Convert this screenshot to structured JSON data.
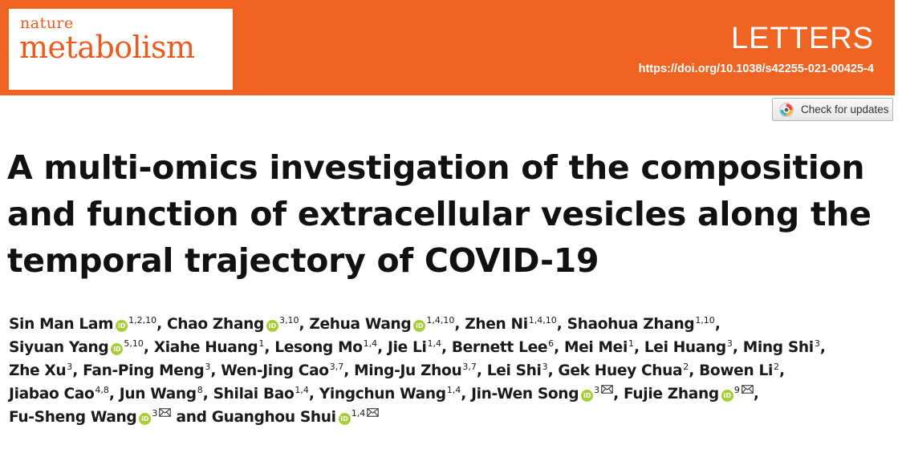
{
  "journal": {
    "name_top": "nature",
    "name_main": "metabolism",
    "article_type": "LETTERS",
    "doi": "https://doi.org/10.1038/s42255-021-00425-4",
    "brand_color": "#f06423"
  },
  "check_updates": {
    "label": "Check for updates"
  },
  "title": "A multi-omics investigation of the composition and function of extracellular vesicles along the temporal trajectory of COVID-19",
  "orcid_label": "iD",
  "author_lines": [
    [
      {
        "name": "Sin Man Lam",
        "orcid": true,
        "sup": "1,2,10",
        "mail": false,
        "sep": ", "
      },
      {
        "name": "Chao Zhang",
        "orcid": true,
        "sup": "3,10",
        "mail": false,
        "sep": ", "
      },
      {
        "name": "Zehua Wang",
        "orcid": true,
        "sup": "1,4,10",
        "mail": false,
        "sep": ", "
      },
      {
        "name": "Zhen Ni",
        "orcid": false,
        "sup": "1,4,10",
        "mail": false,
        "sep": ", "
      },
      {
        "name": "Shaohua Zhang",
        "orcid": false,
        "sup": "1,10",
        "mail": false,
        "sep": ","
      }
    ],
    [
      {
        "name": "Siyuan Yang",
        "orcid": true,
        "sup": "5,10",
        "mail": false,
        "sep": ", "
      },
      {
        "name": "Xiahe Huang",
        "orcid": false,
        "sup": "1",
        "mail": false,
        "sep": ", "
      },
      {
        "name": "Lesong Mo",
        "orcid": false,
        "sup": "1,4",
        "mail": false,
        "sep": ", "
      },
      {
        "name": "Jie Li",
        "orcid": false,
        "sup": "1,4",
        "mail": false,
        "sep": ", "
      },
      {
        "name": "Bernett Lee",
        "orcid": false,
        "sup": "6",
        "mail": false,
        "sep": ", "
      },
      {
        "name": "Mei Mei",
        "orcid": false,
        "sup": "1",
        "mail": false,
        "sep": ", "
      },
      {
        "name": "Lei Huang",
        "orcid": false,
        "sup": "3",
        "mail": false,
        "sep": ", "
      },
      {
        "name": "Ming Shi",
        "orcid": false,
        "sup": "3",
        "mail": false,
        "sep": ","
      }
    ],
    [
      {
        "name": "Zhe Xu",
        "orcid": false,
        "sup": "3",
        "mail": false,
        "sep": ", "
      },
      {
        "name": "Fan-Ping Meng",
        "orcid": false,
        "sup": "3",
        "mail": false,
        "sep": ", "
      },
      {
        "name": "Wen-Jing Cao",
        "orcid": false,
        "sup": "3,7",
        "mail": false,
        "sep": ", "
      },
      {
        "name": "Ming-Ju Zhou",
        "orcid": false,
        "sup": "3,7",
        "mail": false,
        "sep": ", "
      },
      {
        "name": "Lei Shi",
        "orcid": false,
        "sup": "3",
        "mail": false,
        "sep": ", "
      },
      {
        "name": "Gek Huey Chua",
        "orcid": false,
        "sup": "2",
        "mail": false,
        "sep": ", "
      },
      {
        "name": "Bowen Li",
        "orcid": false,
        "sup": "2",
        "mail": false,
        "sep": ","
      }
    ],
    [
      {
        "name": "Jiabao Cao",
        "orcid": false,
        "sup": "4,8",
        "mail": false,
        "sep": ", "
      },
      {
        "name": "Jun Wang",
        "orcid": false,
        "sup": "8",
        "mail": false,
        "sep": ", "
      },
      {
        "name": "Shilai Bao",
        "orcid": false,
        "sup": "1,4",
        "mail": false,
        "sep": ", "
      },
      {
        "name": "Yingchun Wang",
        "orcid": false,
        "sup": "1,4",
        "mail": false,
        "sep": ", "
      },
      {
        "name": "Jin-Wen Song",
        "orcid": true,
        "sup": "3",
        "mail": true,
        "sep": ", "
      },
      {
        "name": "Fujie Zhang",
        "orcid": true,
        "sup": "9",
        "mail": true,
        "sep": ","
      }
    ],
    [
      {
        "name": "Fu-Sheng Wang",
        "orcid": true,
        "sup": "3",
        "mail": true,
        "sep": " and "
      },
      {
        "name": "Guanghou Shui",
        "orcid": true,
        "sup": "1,4",
        "mail": true,
        "sep": ""
      }
    ]
  ]
}
